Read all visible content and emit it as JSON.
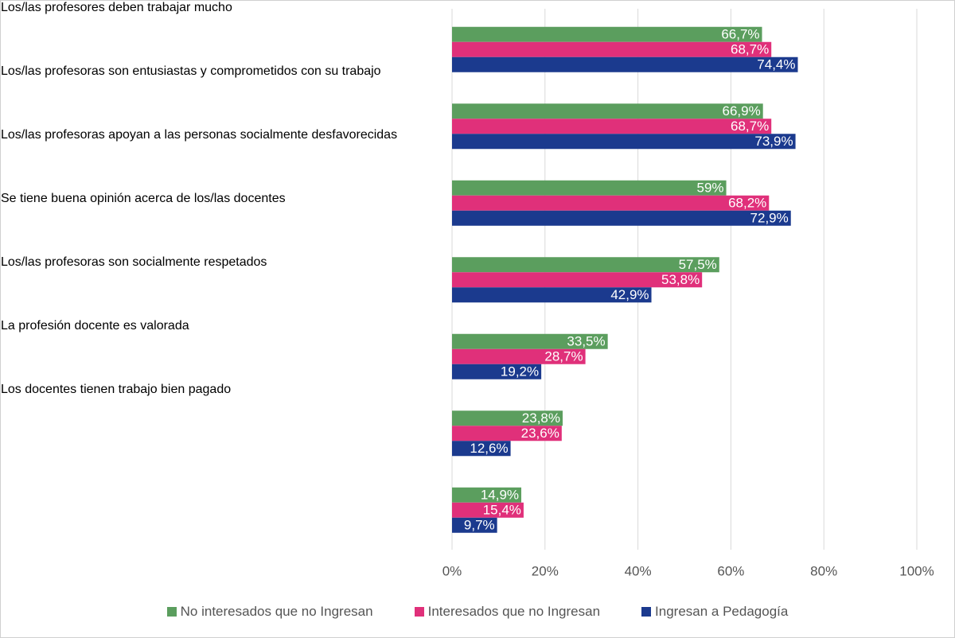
{
  "chart_data": {
    "type": "bar",
    "orientation": "horizontal",
    "categories": [
      "Los/las profesores deben trabajar mucho",
      "Los/las profesoras son entusiastas y comprometidos con su trabajo",
      "Los/las profesoras apoyan a las personas socialmente desfavorecidas",
      "Se tiene buena opinión acerca de los/las docentes",
      "Los/las profesoras son socialmente respetados",
      "La profesión docente es valorada",
      "Los docentes tienen trabajo bien pagado"
    ],
    "series": [
      {
        "name": "No interesados que no Ingresan",
        "color": "#5b9e5e",
        "values": [
          66.7,
          66.9,
          59,
          57.5,
          33.5,
          23.8,
          14.9
        ],
        "value_labels": [
          "66,7%",
          "66,9%",
          "59%",
          "57,5%",
          "33,5%",
          "23,8%",
          "14,9%"
        ]
      },
      {
        "name": "Interesados que no Ingresan",
        "color": "#e0307a",
        "values": [
          68.7,
          68.7,
          68.2,
          53.8,
          28.7,
          23.6,
          15.4
        ],
        "value_labels": [
          "68,7%",
          "68,7%",
          "68,2%",
          "53,8%",
          "28,7%",
          "23,6%",
          "15,4%"
        ]
      },
      {
        "name": "Ingresan a Pedagogía",
        "color": "#1b3a8e",
        "values": [
          74.4,
          73.9,
          72.9,
          42.9,
          19.2,
          12.6,
          9.7
        ],
        "value_labels": [
          "74,4%",
          "73,9%",
          "72,9%",
          "42,9%",
          "19,2%",
          "12,6%",
          "9,7%"
        ]
      }
    ],
    "xlim": [
      0,
      100
    ],
    "xticks": [
      {
        "value": 0,
        "label": "0%"
      },
      {
        "value": 20,
        "label": "20%"
      },
      {
        "value": 40,
        "label": "40%"
      },
      {
        "value": 60,
        "label": "60%"
      },
      {
        "value": 80,
        "label": "80%"
      },
      {
        "value": 100,
        "label": "100%"
      }
    ],
    "grid": true,
    "legend": "bottom"
  }
}
